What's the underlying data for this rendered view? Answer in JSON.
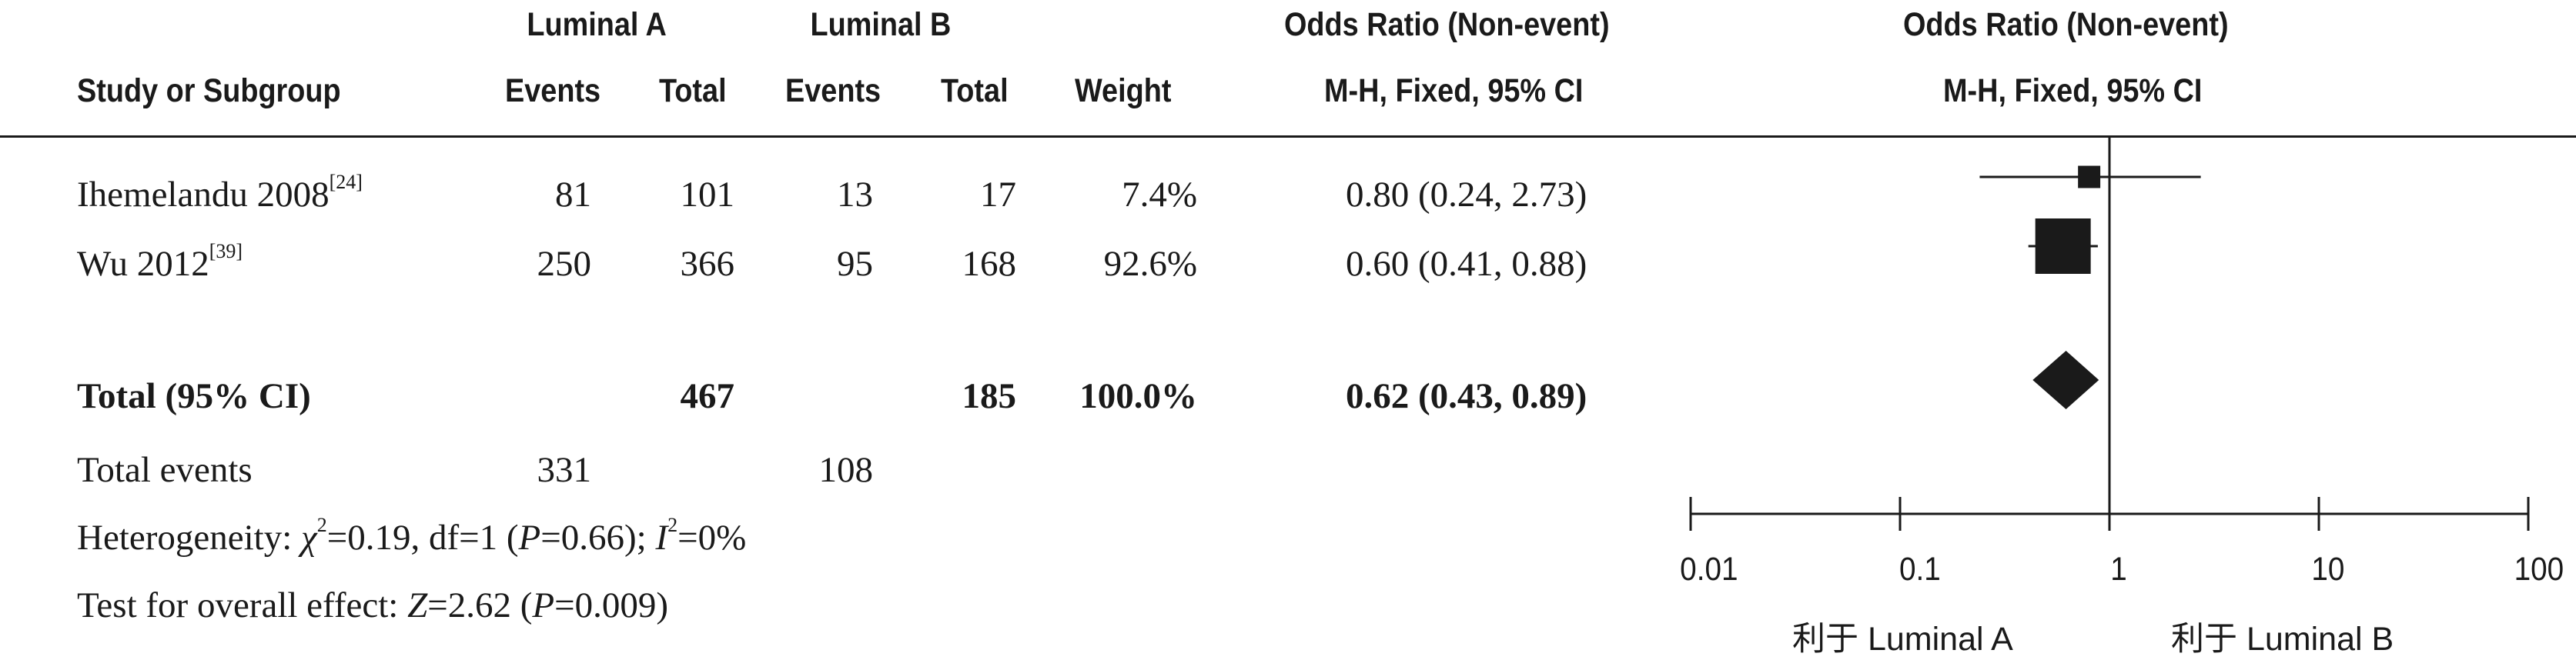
{
  "headers": {
    "luminal_a": "Luminal A",
    "luminal_b": "Luminal B",
    "or_header_1": "Odds Ratio (Non-event)",
    "or_header_2": "Odds Ratio (Non-event)",
    "study": "Study or Subgroup",
    "events_a": "Events",
    "total_a": "Total",
    "events_b": "Events",
    "total_b": "Total",
    "weight": "Weight",
    "method_1": "M-H, Fixed, 95% CI",
    "method_2": "M-H, Fixed, 95% CI"
  },
  "studies": [
    {
      "name": "Ihemelandu 2008",
      "ref": "[24]",
      "events_a": "81",
      "total_a": "101",
      "events_b": "13",
      "total_b": "17",
      "weight": "7.4%",
      "ci_text": "0.80 (0.24, 2.73)"
    },
    {
      "name": "Wu 2012",
      "ref": "[39]",
      "events_a": "250",
      "total_a": "366",
      "events_b": "95",
      "total_b": "168",
      "weight": "92.6%",
      "ci_text": "0.60 (0.41, 0.88)"
    }
  ],
  "total": {
    "label": "Total (95% CI)",
    "total_a": "467",
    "total_b": "185",
    "weight": "100.0%",
    "ci_text": "0.62 (0.43, 0.89)"
  },
  "total_events": {
    "label": "Total events",
    "events_a": "331",
    "events_b": "108"
  },
  "heterogeneity": {
    "prefix": "Heterogeneity: ",
    "chi": "χ",
    "chi_sup": "2",
    "chi_val": "=0.19, df=1 (",
    "p": "P",
    "p_val": "=0.66); ",
    "i": "I",
    "i_sup": "2",
    "i_val": "=0%"
  },
  "overall": {
    "prefix": "Test for overall effect: ",
    "z": "Z",
    "z_val": "=2.62 (",
    "p": "P",
    "p_val": "=0.009)"
  },
  "axis": {
    "ticks": [
      "0.01",
      "0.1",
      "1",
      "10",
      "100"
    ]
  },
  "favours": {
    "left": "利于 Luminal A",
    "right": "利于 Luminal B"
  },
  "chart_data": {
    "type": "forest",
    "scale": "log",
    "xlim": [
      0.01,
      100
    ],
    "reference_line": 1,
    "studies": [
      {
        "name": "Ihemelandu 2008",
        "or": 0.8,
        "lower": 0.24,
        "upper": 2.73,
        "weight": 7.4
      },
      {
        "name": "Wu 2012",
        "or": 0.6,
        "lower": 0.41,
        "upper": 0.88,
        "weight": 92.6
      }
    ],
    "pooled": {
      "or": 0.62,
      "lower": 0.43,
      "upper": 0.89
    },
    "colors": {
      "marker": "#1a1a1a",
      "line": "#1a1a1a"
    }
  }
}
